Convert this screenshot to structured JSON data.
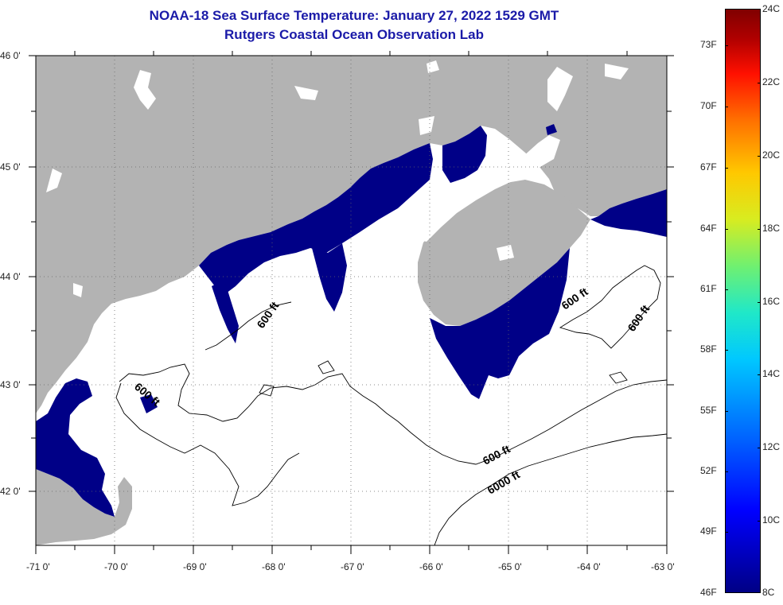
{
  "title": {
    "line1": "NOAA-18 Sea Surface Temperature:  January 27, 2022 1529 GMT",
    "line2": "Rutgers Coastal Ocean Observation Lab"
  },
  "map": {
    "lat_labels": [
      "46 0'",
      "45 0'",
      "44 0'",
      "43 0'",
      "42 0'"
    ],
    "lon_labels": [
      "-71 0'",
      "-70 0'",
      "-69 0'",
      "-68 0'",
      "-67 0'",
      "-66 0'",
      "-65 0'",
      "-64 0'",
      "-63 0'"
    ],
    "contour_labels": [
      "600 ft",
      "600 ft",
      "600 ft",
      "600 ft",
      "600 ft",
      "6000 ft"
    ],
    "colors": {
      "land": "#b3b3b3",
      "water": "#ffffff",
      "cold_sst": "#000087",
      "contour": "#000000",
      "grid": "#555555"
    }
  },
  "colorbar": {
    "fahrenheit": [
      "73F",
      "70F",
      "67F",
      "64F",
      "61F",
      "58F",
      "55F",
      "52F",
      "49F",
      "46F"
    ],
    "celsius": [
      "24C",
      "22C",
      "20C",
      "18C",
      "16C",
      "14C",
      "12C",
      "10C",
      "8C"
    ]
  }
}
